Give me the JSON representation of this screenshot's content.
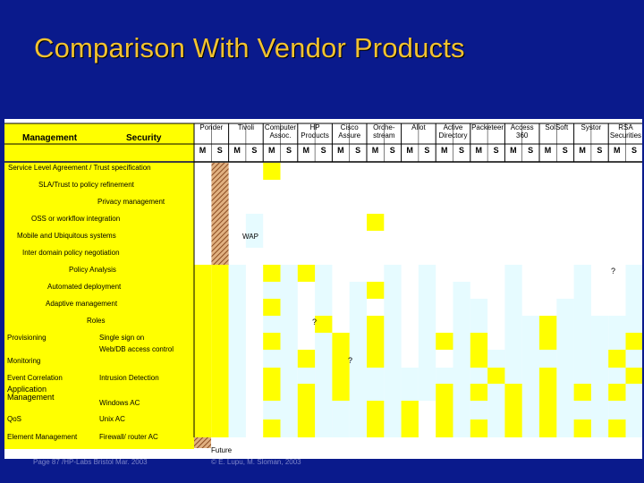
{
  "slide": {
    "title": "Comparison With Vendor Products",
    "footer_left": "Page 87 /HP-Labs Bristol Mar. 2003",
    "footer_right": "© E. Lupu, M. Sloman, 2003"
  },
  "table": {
    "header_left": "Management",
    "header_mid": "Security",
    "vendors": [
      [
        "",
        "Ponder"
      ],
      [
        "",
        "Tivoli"
      ],
      [
        "Computer",
        "Assoc."
      ],
      [
        "HP",
        "Products"
      ],
      [
        "Cisco",
        "Assure"
      ],
      [
        "Orche-",
        "stream"
      ],
      [
        "",
        "Allot"
      ],
      [
        "Active",
        "Directory"
      ],
      [
        "",
        "Packeteer"
      ],
      [
        "Access",
        "360"
      ],
      [
        "",
        "SolSoft"
      ],
      [
        "",
        "Systor"
      ],
      [
        "RSA",
        "Securities"
      ]
    ],
    "ms_labels": [
      "M",
      "S"
    ],
    "rows": [
      {
        "l1": "Service Level Agreement / Trust specification",
        "l2": ""
      },
      {
        "l1": "SLA/Trust  to policy refinement",
        "l2": ""
      },
      {
        "l1": "Privacy management",
        "l2": ""
      },
      {
        "l1": "OSS or workflow integration",
        "l2": ""
      },
      {
        "l1": "Mobile and Ubiquitous systems",
        "l2": ""
      },
      {
        "l1": "Inter domain policy negotiation",
        "l2": ""
      },
      {
        "l1": "Policy Analysis",
        "l2": ""
      },
      {
        "l1": "Automated deployment",
        "l2": ""
      },
      {
        "l1": "Adaptive management",
        "l2": ""
      },
      {
        "l1": "Roles",
        "l2": ""
      },
      {
        "l1": "Provisioning",
        "l2": "Single sign on"
      },
      {
        "l1": "Monitoring",
        "l2": "Web/DB access control"
      },
      {
        "l1": "Event Correlation",
        "l2": "Intrusion Detection"
      },
      {
        "l1": "Application Management",
        "l2": "Windows AC"
      },
      {
        "l1": "QoS",
        "l2": "Unix AC"
      },
      {
        "l1": "Element Management",
        "l2": "Firewall/ router AC"
      }
    ],
    "annotations": {
      "wap": "WAP",
      "q1": "?",
      "q2": "?",
      "q3": "?",
      "future": "Future"
    },
    "colors": {
      "yellow": "#ffff00",
      "cyan": "#e6fbff",
      "hatch": "#c08040"
    }
  }
}
